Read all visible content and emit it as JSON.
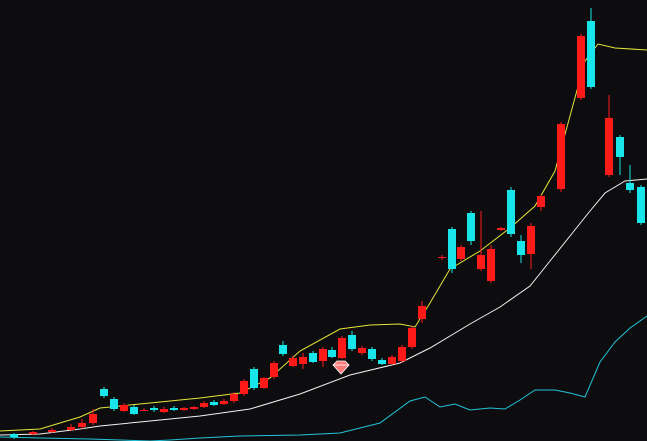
{
  "chart_data": {
    "type": "candlestick",
    "title": "",
    "xlabel": "",
    "ylabel": "",
    "ylim": [
      0,
      441
    ],
    "grid": false,
    "legend": "none",
    "colors": {
      "background": "#0d0d0f",
      "up": "#ff1a1a",
      "down": "#19e6ea",
      "ma_fast": "#e6e63a",
      "ma_slow": "#f2f2f2",
      "ma_long": "#21c4da",
      "marker": "#ff7a7a"
    },
    "candles": [
      {
        "x": 14,
        "open": 4,
        "close": 7,
        "high": 8,
        "low": 2,
        "dir": "down"
      },
      {
        "x": 33,
        "open": 7,
        "close": 9,
        "high": 10,
        "low": 6,
        "dir": "up"
      },
      {
        "x": 52,
        "open": 9,
        "close": 11,
        "high": 13,
        "low": 8,
        "dir": "up"
      },
      {
        "x": 71,
        "open": 11,
        "close": 14,
        "high": 17,
        "low": 10,
        "dir": "up"
      },
      {
        "x": 82,
        "open": 14,
        "close": 18,
        "high": 22,
        "low": 12,
        "dir": "up"
      },
      {
        "x": 93,
        "open": 18,
        "close": 27,
        "high": 32,
        "low": 16,
        "dir": "up"
      },
      {
        "x": 104,
        "open": 45,
        "close": 52,
        "high": 54,
        "low": 43,
        "dir": "down"
      },
      {
        "x": 114,
        "open": 32,
        "close": 42,
        "high": 44,
        "low": 30,
        "dir": "down"
      },
      {
        "x": 124,
        "open": 30,
        "close": 36,
        "high": 38,
        "low": 29,
        "dir": "up"
      },
      {
        "x": 134,
        "open": 27,
        "close": 34,
        "high": 36,
        "low": 26,
        "dir": "down"
      },
      {
        "x": 144,
        "open": 31,
        "close": 31,
        "high": 33,
        "low": 30,
        "dir": "up"
      },
      {
        "x": 154,
        "open": 31,
        "close": 33,
        "high": 35,
        "low": 29,
        "dir": "down"
      },
      {
        "x": 164,
        "open": 29,
        "close": 32,
        "high": 34,
        "low": 28,
        "dir": "up"
      },
      {
        "x": 174,
        "open": 31,
        "close": 33,
        "high": 35,
        "low": 30,
        "dir": "down"
      },
      {
        "x": 184,
        "open": 31,
        "close": 33,
        "high": 34,
        "low": 30,
        "dir": "up"
      },
      {
        "x": 194,
        "open": 32,
        "close": 34,
        "high": 35,
        "low": 31,
        "dir": "up"
      },
      {
        "x": 204,
        "open": 34,
        "close": 38,
        "high": 40,
        "low": 33,
        "dir": "up"
      },
      {
        "x": 214,
        "open": 36,
        "close": 39,
        "high": 41,
        "low": 35,
        "dir": "down"
      },
      {
        "x": 224,
        "open": 37,
        "close": 40,
        "high": 42,
        "low": 36,
        "dir": "up"
      },
      {
        "x": 234,
        "open": 40,
        "close": 47,
        "high": 49,
        "low": 38,
        "dir": "up"
      },
      {
        "x": 244,
        "open": 47,
        "close": 60,
        "high": 62,
        "low": 45,
        "dir": "up"
      },
      {
        "x": 254,
        "open": 53,
        "close": 72,
        "high": 74,
        "low": 51,
        "dir": "down"
      },
      {
        "x": 264,
        "open": 53,
        "close": 63,
        "high": 64,
        "low": 52,
        "dir": "up"
      },
      {
        "x": 274,
        "open": 64,
        "close": 78,
        "high": 80,
        "low": 62,
        "dir": "up"
      },
      {
        "x": 283,
        "open": 87,
        "close": 96,
        "high": 100,
        "low": 85,
        "dir": "down"
      },
      {
        "x": 293,
        "open": 75,
        "close": 83,
        "high": 85,
        "low": 74,
        "dir": "up"
      },
      {
        "x": 303,
        "open": 77,
        "close": 84,
        "high": 88,
        "low": 72,
        "dir": "up"
      },
      {
        "x": 313,
        "open": 79,
        "close": 88,
        "high": 90,
        "low": 78,
        "dir": "down"
      },
      {
        "x": 323,
        "open": 80,
        "close": 92,
        "high": 94,
        "low": 74,
        "dir": "up"
      },
      {
        "x": 332,
        "open": 84,
        "close": 91,
        "high": 94,
        "low": 83,
        "dir": "down"
      },
      {
        "x": 342,
        "open": 83,
        "close": 103,
        "high": 105,
        "low": 82,
        "dir": "up"
      },
      {
        "x": 352,
        "open": 92,
        "close": 106,
        "high": 110,
        "low": 90,
        "dir": "down"
      },
      {
        "x": 362,
        "open": 88,
        "close": 93,
        "high": 95,
        "low": 86,
        "dir": "up"
      },
      {
        "x": 372,
        "open": 82,
        "close": 92,
        "high": 94,
        "low": 80,
        "dir": "down"
      },
      {
        "x": 382,
        "open": 77,
        "close": 81,
        "high": 83,
        "low": 76,
        "dir": "down"
      },
      {
        "x": 392,
        "open": 77,
        "close": 84,
        "high": 86,
        "low": 76,
        "dir": "up"
      },
      {
        "x": 402,
        "open": 80,
        "close": 94,
        "high": 96,
        "low": 78,
        "dir": "up"
      },
      {
        "x": 412,
        "open": 94,
        "close": 113,
        "high": 115,
        "low": 92,
        "dir": "up"
      },
      {
        "x": 422,
        "open": 122,
        "close": 135,
        "high": 140,
        "low": 118,
        "dir": "up"
      },
      {
        "x": 442,
        "open": 183,
        "close": 184,
        "high": 186,
        "low": 181,
        "dir": "up"
      },
      {
        "x": 452,
        "open": 172,
        "close": 212,
        "high": 214,
        "low": 168,
        "dir": "down"
      },
      {
        "x": 461,
        "open": 182,
        "close": 194,
        "high": 196,
        "low": 180,
        "dir": "up"
      },
      {
        "x": 471,
        "open": 200,
        "close": 228,
        "high": 230,
        "low": 196,
        "dir": "down"
      },
      {
        "x": 481,
        "open": 172,
        "close": 186,
        "high": 230,
        "low": 170,
        "dir": "up"
      },
      {
        "x": 491,
        "open": 160,
        "close": 192,
        "high": 196,
        "low": 158,
        "dir": "up"
      },
      {
        "x": 501,
        "open": 211,
        "close": 213,
        "high": 214,
        "low": 210,
        "dir": "up"
      },
      {
        "x": 511,
        "open": 207,
        "close": 251,
        "high": 254,
        "low": 204,
        "dir": "down"
      },
      {
        "x": 521,
        "open": 186,
        "close": 200,
        "high": 206,
        "low": 178,
        "dir": "down"
      },
      {
        "x": 531,
        "open": 187,
        "close": 215,
        "high": 218,
        "low": 172,
        "dir": "up"
      },
      {
        "x": 541,
        "open": 234,
        "close": 245,
        "high": 246,
        "low": 230,
        "dir": "up"
      },
      {
        "x": 561,
        "open": 252,
        "close": 317,
        "high": 319,
        "low": 249,
        "dir": "up"
      },
      {
        "x": 581,
        "open": 343,
        "close": 405,
        "high": 407,
        "low": 341,
        "dir": "up"
      },
      {
        "x": 591,
        "open": 354,
        "close": 420,
        "high": 433,
        "low": 352,
        "dir": "down"
      },
      {
        "x": 609,
        "open": 266,
        "close": 323,
        "high": 346,
        "low": 264,
        "dir": "up"
      },
      {
        "x": 620,
        "open": 284,
        "close": 304,
        "high": 306,
        "low": 266,
        "dir": "down"
      },
      {
        "x": 630,
        "open": 251,
        "close": 258,
        "high": 276,
        "low": 248,
        "dir": "down"
      },
      {
        "x": 641,
        "open": 218,
        "close": 254,
        "high": 256,
        "low": 216,
        "dir": "down"
      }
    ],
    "series": [
      {
        "key": "ma_fast",
        "points": [
          [
            0,
            10
          ],
          [
            40,
            12
          ],
          [
            80,
            24
          ],
          [
            100,
            33
          ],
          [
            150,
            38
          ],
          [
            200,
            43
          ],
          [
            240,
            48
          ],
          [
            270,
            63
          ],
          [
            300,
            90
          ],
          [
            340,
            112
          ],
          [
            370,
            116
          ],
          [
            400,
            117
          ],
          [
            415,
            114
          ],
          [
            430,
            138
          ],
          [
            450,
            172
          ],
          [
            480,
            190
          ],
          [
            510,
            213
          ],
          [
            535,
            235
          ],
          [
            555,
            270
          ],
          [
            570,
            325
          ],
          [
            585,
            380
          ],
          [
            598,
            397
          ],
          [
            615,
            393
          ],
          [
            647,
            391
          ]
        ]
      },
      {
        "key": "ma_slow",
        "points": [
          [
            0,
            6
          ],
          [
            40,
            7
          ],
          [
            80,
            12
          ],
          [
            100,
            15
          ],
          [
            150,
            20
          ],
          [
            200,
            25
          ],
          [
            250,
            32
          ],
          [
            300,
            47
          ],
          [
            350,
            66
          ],
          [
            400,
            78
          ],
          [
            430,
            93
          ],
          [
            470,
            117
          ],
          [
            500,
            134
          ],
          [
            530,
            155
          ],
          [
            550,
            180
          ],
          [
            570,
            205
          ],
          [
            590,
            230
          ],
          [
            605,
            248
          ],
          [
            625,
            260
          ],
          [
            647,
            262
          ]
        ]
      },
      {
        "key": "ma_long",
        "points": [
          [
            0,
            4
          ],
          [
            40,
            3
          ],
          [
            90,
            2
          ],
          [
            150,
            0
          ],
          [
            170,
            1
          ],
          [
            200,
            3
          ],
          [
            240,
            5
          ],
          [
            300,
            6
          ],
          [
            340,
            8
          ],
          [
            380,
            18
          ],
          [
            410,
            40
          ],
          [
            425,
            44
          ],
          [
            440,
            34
          ],
          [
            455,
            37
          ],
          [
            470,
            31
          ],
          [
            490,
            33
          ],
          [
            505,
            32
          ],
          [
            520,
            41
          ],
          [
            535,
            51
          ],
          [
            555,
            51
          ],
          [
            570,
            48
          ],
          [
            585,
            44
          ],
          [
            600,
            79
          ],
          [
            615,
            99
          ],
          [
            630,
            113
          ],
          [
            647,
            125
          ]
        ]
      }
    ],
    "markers": [
      {
        "type": "diamond",
        "x": 341,
        "y": 73
      }
    ]
  }
}
